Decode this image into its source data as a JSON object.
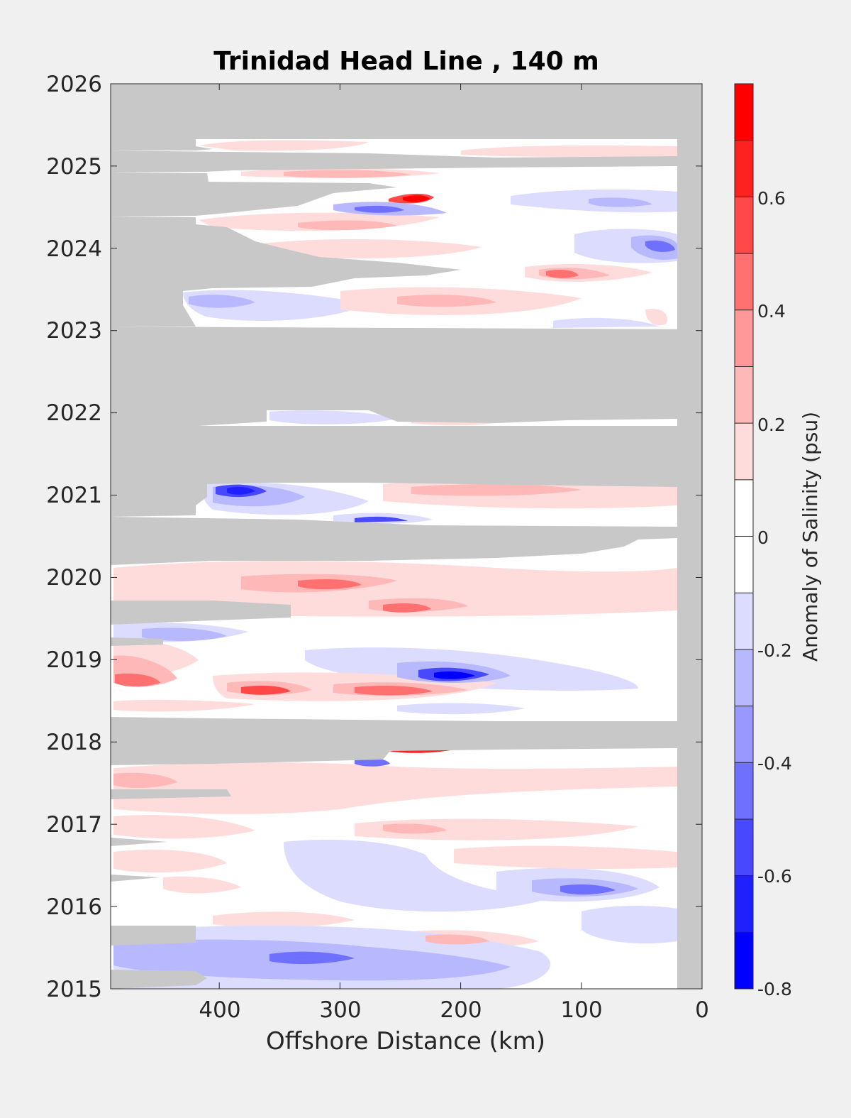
{
  "chart_data": {
    "type": "heatmap",
    "title": "Trinidad Head Line , 140 m",
    "xlabel": "Offshore Distance (km)",
    "ylabel": "",
    "x_reversed": true,
    "xlim": [
      0,
      490
    ],
    "ylim": [
      2015,
      2026
    ],
    "xticks": [
      "400",
      "300",
      "200",
      "100",
      "0"
    ],
    "yticks": [
      "2015",
      "2016",
      "2017",
      "2018",
      "2019",
      "2020",
      "2021",
      "2022",
      "2023",
      "2024",
      "2025",
      "2026"
    ],
    "colorbar": {
      "label": "Anomaly of Salinity (psu)",
      "range": [
        -0.8,
        0.8
      ],
      "tick_labels": [
        "-0.8",
        "-0.6",
        "-0.4",
        "-0.2",
        "0",
        "0.2",
        "0.4",
        "0.6"
      ],
      "levels": [
        -0.8,
        -0.7,
        -0.6,
        -0.5,
        -0.4,
        -0.3,
        -0.2,
        -0.1,
        0,
        0.1,
        0.2,
        0.3,
        0.4,
        0.5,
        0.6,
        0.7,
        0.8
      ],
      "colors": [
        "#0000ff",
        "#2020ff",
        "#4848ff",
        "#7070ff",
        "#9898ff",
        "#b8b8ff",
        "#dcdcff",
        "#ffffff",
        "#ffffff",
        "#ffdcdc",
        "#ffb8b8",
        "#ff9898",
        "#ff7070",
        "#ff4848",
        "#ff2020",
        "#ff0000"
      ]
    },
    "missing_data_color": "#c8c8c8",
    "no_data_bands": [
      {
        "y": [
          2025.33,
          2026.0
        ],
        "x": [
          0,
          490
        ]
      },
      {
        "y": [
          2024.4,
          2025.08
        ],
        "x": [
          420,
          490
        ]
      },
      {
        "y": [
          2023.0,
          2024.3
        ],
        "x": [
          400,
          490
        ]
      },
      {
        "y": [
          2022.95,
          2023.0
        ],
        "x": [
          0,
          490
        ]
      },
      {
        "y": [
          2022.0,
          2023.0
        ],
        "x": [
          0,
          490
        ]
      },
      {
        "y": [
          2021.1,
          2021.9
        ],
        "x": [
          0,
          490
        ]
      },
      {
        "y": [
          2020.2,
          2020.85
        ],
        "x": [
          0,
          490
        ]
      },
      {
        "y": [
          2017.95,
          2018.3
        ],
        "x": [
          0,
          490
        ]
      },
      {
        "y": [
          2019.55,
          2019.8
        ],
        "x": [
          340,
          490
        ]
      },
      {
        "y": [
          2015.5,
          2015.75
        ],
        "x": [
          420,
          490
        ]
      },
      {
        "y": [
          2015.0,
          2015.2
        ],
        "x": [
          420,
          490
        ]
      },
      {
        "y": [
          2015.0,
          2026.0
        ],
        "x": [
          0,
          20
        ]
      }
    ],
    "anomalies": [
      {
        "x": 235,
        "y": 2024.6,
        "value": 0.7
      },
      {
        "x": 270,
        "y": 2024.5,
        "value": -0.4
      },
      {
        "x": 30,
        "y": 2024.0,
        "value": -0.5
      },
      {
        "x": 110,
        "y": 2023.7,
        "value": 0.4
      },
      {
        "x": 380,
        "y": 2021.05,
        "value": -0.5
      },
      {
        "x": 260,
        "y": 2020.8,
        "value": -0.6
      },
      {
        "x": 300,
        "y": 2020.1,
        "value": 0.4
      },
      {
        "x": 200,
        "y": 2019.55,
        "value": 0.4
      },
      {
        "x": 200,
        "y": 2018.75,
        "value": -0.8
      },
      {
        "x": 475,
        "y": 2018.75,
        "value": 0.5
      },
      {
        "x": 360,
        "y": 2018.55,
        "value": 0.6
      },
      {
        "x": 230,
        "y": 2018.5,
        "value": 0.5
      },
      {
        "x": 230,
        "y": 2017.85,
        "value": 0.6
      },
      {
        "x": 270,
        "y": 2017.75,
        "value": -0.5
      },
      {
        "x": 90,
        "y": 2016.2,
        "value": -0.5
      },
      {
        "x": 350,
        "y": 2015.3,
        "value": -0.4
      },
      {
        "x": 450,
        "y": 2017.5,
        "value": 0.4
      }
    ]
  }
}
